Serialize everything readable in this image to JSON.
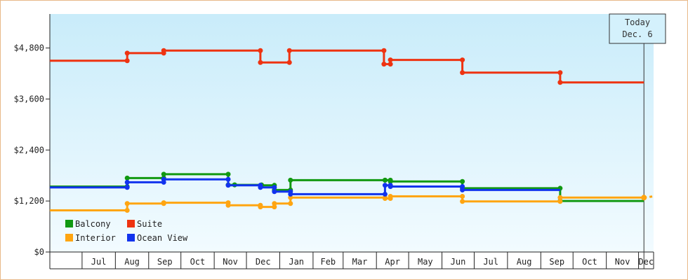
{
  "chart_data": {
    "type": "line",
    "title": "",
    "xlabel": "",
    "ylabel": "",
    "ylim": [
      0,
      5600
    ],
    "y_ticks": [
      0,
      1200,
      2400,
      3600,
      4800
    ],
    "y_tick_labels": [
      "$0",
      "$1,200",
      "$2,400",
      "$3,600",
      "$4,800"
    ],
    "x_range": [
      "2021-06-01",
      "2022-12-15"
    ],
    "months": [
      {
        "label": "Jul",
        "start": "2021-07-01",
        "end": "2021-08-01"
      },
      {
        "label": "Aug",
        "start": "2021-08-01",
        "end": "2021-09-01"
      },
      {
        "label": "Sep",
        "start": "2021-09-01",
        "end": "2021-10-01"
      },
      {
        "label": "Oct",
        "start": "2021-10-01",
        "end": "2021-11-01"
      },
      {
        "label": "Nov",
        "start": "2021-11-01",
        "end": "2021-12-01"
      },
      {
        "label": "Dec",
        "start": "2021-12-01",
        "end": "2022-01-01"
      },
      {
        "label": "Jan",
        "start": "2022-01-01",
        "end": "2022-02-01"
      },
      {
        "label": "Feb",
        "start": "2022-02-01",
        "end": "2022-03-01"
      },
      {
        "label": "Mar",
        "start": "2022-03-01",
        "end": "2022-04-01"
      },
      {
        "label": "Apr",
        "start": "2022-04-01",
        "end": "2022-05-01"
      },
      {
        "label": "May",
        "start": "2022-05-01",
        "end": "2022-06-01"
      },
      {
        "label": "Jun",
        "start": "2022-06-01",
        "end": "2022-07-01"
      },
      {
        "label": "Jul",
        "start": "2022-07-01",
        "end": "2022-08-01"
      },
      {
        "label": "Aug",
        "start": "2022-08-01",
        "end": "2022-09-01"
      },
      {
        "label": "Sep",
        "start": "2022-09-01",
        "end": "2022-10-01"
      },
      {
        "label": "Oct",
        "start": "2022-10-01",
        "end": "2022-11-01"
      },
      {
        "label": "Nov",
        "start": "2022-11-01",
        "end": "2022-12-01"
      },
      {
        "label": "Dec",
        "start": "2022-12-01",
        "end": "2022-12-15"
      }
    ],
    "today": {
      "date": "2022-12-06",
      "label_line1": "Today",
      "label_line2": "Dec. 6"
    },
    "grid": false,
    "legend_position": "bottom-left",
    "background_gradient": [
      "#c9ecfa",
      "#f2fbff"
    ],
    "series": [
      {
        "name": "Balcony",
        "color": "#119911",
        "points": [
          [
            "2021-06-01",
            1540
          ],
          [
            "2021-08-12",
            1540
          ],
          [
            "2021-08-12",
            1740
          ],
          [
            "2021-09-15",
            1740
          ],
          [
            "2021-09-15",
            1830
          ],
          [
            "2021-11-14",
            1830
          ],
          [
            "2021-11-14",
            1580
          ],
          [
            "2021-11-20",
            1580
          ],
          [
            "2021-11-20",
            1580
          ],
          [
            "2021-12-15",
            1580
          ],
          [
            "2021-12-15",
            1570
          ],
          [
            "2021-12-27",
            1570
          ],
          [
            "2021-12-27",
            1460
          ],
          [
            "2022-01-11",
            1460
          ],
          [
            "2022-01-11",
            1690
          ],
          [
            "2022-04-09",
            1690
          ],
          [
            "2022-04-09",
            1690
          ],
          [
            "2022-04-14",
            1690
          ],
          [
            "2022-04-14",
            1660
          ],
          [
            "2022-06-20",
            1660
          ],
          [
            "2022-06-20",
            1500
          ],
          [
            "2022-09-19",
            1500
          ],
          [
            "2022-09-19",
            1200
          ],
          [
            "2022-12-06",
            1200
          ]
        ]
      },
      {
        "name": "Suite",
        "color": "#ee3311",
        "points": [
          [
            "2021-06-01",
            4500
          ],
          [
            "2021-08-12",
            4500
          ],
          [
            "2021-08-12",
            4680
          ],
          [
            "2021-09-15",
            4680
          ],
          [
            "2021-09-15",
            4740
          ],
          [
            "2021-12-14",
            4740
          ],
          [
            "2021-12-14",
            4460
          ],
          [
            "2022-01-10",
            4460
          ],
          [
            "2022-01-10",
            4740
          ],
          [
            "2022-04-08",
            4740
          ],
          [
            "2022-04-08",
            4420
          ],
          [
            "2022-04-14",
            4420
          ],
          [
            "2022-04-14",
            4520
          ],
          [
            "2022-06-20",
            4520
          ],
          [
            "2022-06-20",
            4220
          ],
          [
            "2022-09-19",
            4220
          ],
          [
            "2022-09-19",
            3990
          ],
          [
            "2022-12-06",
            3990
          ]
        ]
      },
      {
        "name": "Interior",
        "color": "#ffa511",
        "points": [
          [
            "2021-06-01",
            980
          ],
          [
            "2021-08-12",
            980
          ],
          [
            "2021-08-12",
            1140
          ],
          [
            "2021-09-15",
            1140
          ],
          [
            "2021-09-15",
            1160
          ],
          [
            "2021-11-14",
            1160
          ],
          [
            "2021-11-14",
            1100
          ],
          [
            "2021-12-14",
            1100
          ],
          [
            "2021-12-14",
            1060
          ],
          [
            "2021-12-27",
            1060
          ],
          [
            "2021-12-27",
            1140
          ],
          [
            "2022-01-11",
            1140
          ],
          [
            "2022-01-11",
            1280
          ],
          [
            "2022-04-09",
            1280
          ],
          [
            "2022-04-09",
            1260
          ],
          [
            "2022-04-14",
            1260
          ],
          [
            "2022-04-14",
            1310
          ],
          [
            "2022-06-20",
            1310
          ],
          [
            "2022-06-20",
            1190
          ],
          [
            "2022-09-19",
            1190
          ],
          [
            "2022-09-19",
            1280
          ],
          [
            "2022-12-06",
            1280
          ]
        ],
        "projection": [
          [
            "2022-12-06",
            1280
          ],
          [
            "2022-12-15",
            1310
          ]
        ]
      },
      {
        "name": "Ocean View",
        "color": "#1133ee",
        "points": [
          [
            "2021-06-01",
            1520
          ],
          [
            "2021-08-12",
            1520
          ],
          [
            "2021-08-12",
            1640
          ],
          [
            "2021-09-15",
            1640
          ],
          [
            "2021-09-15",
            1710
          ],
          [
            "2021-11-14",
            1710
          ],
          [
            "2021-11-14",
            1570
          ],
          [
            "2021-12-14",
            1570
          ],
          [
            "2021-12-14",
            1520
          ],
          [
            "2021-12-27",
            1520
          ],
          [
            "2021-12-27",
            1420
          ],
          [
            "2022-01-11",
            1420
          ],
          [
            "2022-01-11",
            1360
          ],
          [
            "2022-04-09",
            1360
          ],
          [
            "2022-04-09",
            1570
          ],
          [
            "2022-04-14",
            1570
          ],
          [
            "2022-04-14",
            1540
          ],
          [
            "2022-06-20",
            1540
          ],
          [
            "2022-06-20",
            1460
          ],
          [
            "2022-09-19",
            1460
          ]
        ]
      }
    ],
    "legend": [
      {
        "name": "Balcony",
        "color": "#119911"
      },
      {
        "name": "Suite",
        "color": "#ee3311"
      },
      {
        "name": "Interior",
        "color": "#ffa511"
      },
      {
        "name": "Ocean View",
        "color": "#1133ee"
      }
    ]
  }
}
